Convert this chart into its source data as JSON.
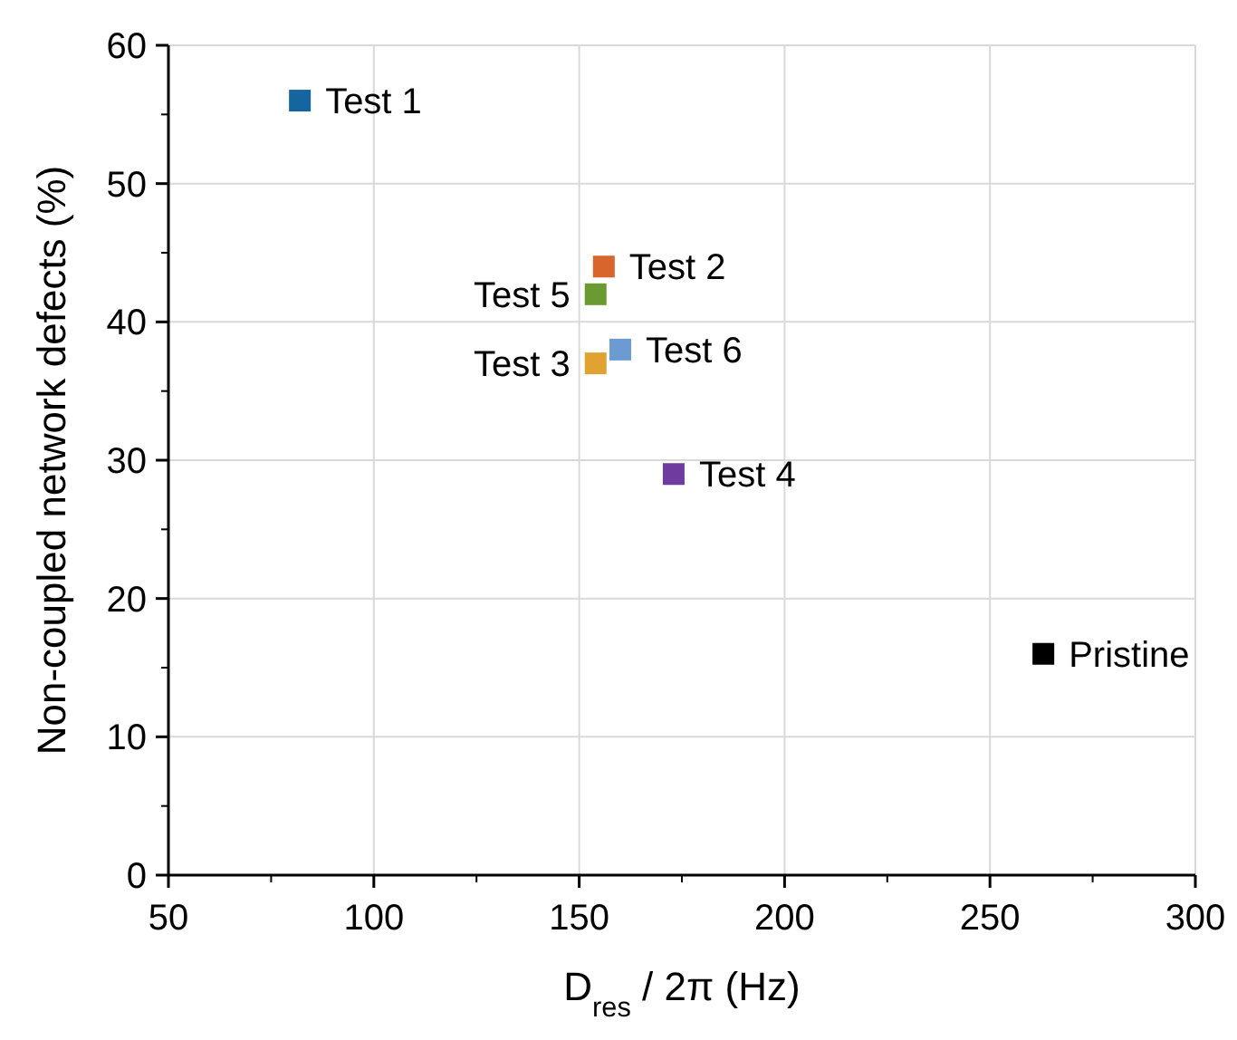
{
  "chart_data": {
    "type": "scatter",
    "xlabel": "D$_{res}$ / 2π (Hz)",
    "ylabel": "Non-coupled network defects (%)",
    "xlim": [
      50,
      300
    ],
    "ylim": [
      0,
      60
    ],
    "xticks": [
      50,
      100,
      150,
      200,
      250,
      300
    ],
    "yticks": [
      0,
      10,
      20,
      30,
      40,
      50,
      60
    ],
    "grid": true,
    "marker": "square",
    "series": [
      {
        "name": "Test 1",
        "color": "#1565a0",
        "x": [
          82
        ],
        "values": [
          56
        ]
      },
      {
        "name": "Test 2",
        "color": "#d8652b",
        "x": [
          156
        ],
        "values": [
          44
        ]
      },
      {
        "name": "Test 5",
        "color": "#6a9a32",
        "x": [
          154
        ],
        "values": [
          42
        ]
      },
      {
        "name": "Test 6",
        "color": "#6b9bd2",
        "x": [
          160
        ],
        "values": [
          38
        ]
      },
      {
        "name": "Test 3",
        "color": "#e2a232",
        "x": [
          154
        ],
        "values": [
          37
        ]
      },
      {
        "name": "Test 4",
        "color": "#6e3c9e",
        "x": [
          173
        ],
        "values": [
          29
        ]
      },
      {
        "name": "Pristine",
        "color": "#000000",
        "x": [
          263
        ],
        "values": [
          16
        ]
      }
    ]
  }
}
